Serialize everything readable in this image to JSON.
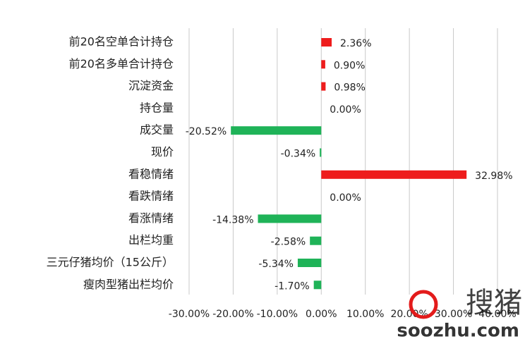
{
  "chart_data": {
    "type": "hbar",
    "categories": [
      "前20名空单合计持仓",
      "前20名多单合计持仓",
      "沉淀资金",
      "持仓量",
      "成交量",
      "现价",
      "看稳情绪",
      "看跌情绪",
      "看涨情绪",
      "出栏均重",
      "三元仔猪均价（15公斤）",
      "瘦肉型猪出栏均价"
    ],
    "values": [
      2.36,
      0.9,
      0.98,
      0.0,
      -20.52,
      -0.34,
      32.98,
      0.0,
      -14.38,
      -2.58,
      -5.34,
      -1.7
    ],
    "value_labels": [
      "2.36%",
      "0.90%",
      "0.98%",
      "0.00%",
      "-20.52%",
      "-0.34%",
      "32.98%",
      "0.00%",
      "-14.38%",
      "-2.58%",
      "-5.34%",
      "-1.70%"
    ],
    "positive_color": "#ee1c1c",
    "negative_color": "#1fb358",
    "xlim": [
      -30,
      40
    ],
    "xticks": [
      {
        "value": -30,
        "label": "-30.00%"
      },
      {
        "value": -20,
        "label": "-20.00%"
      },
      {
        "value": -10,
        "label": "-10.00%"
      },
      {
        "value": 0,
        "label": "0.00%"
      },
      {
        "value": 10,
        "label": "10.00%"
      },
      {
        "value": 20,
        "label": "20.00%"
      },
      {
        "value": 30,
        "label": "30.00%"
      },
      {
        "value": 40,
        "label": "40.00%"
      }
    ],
    "grid": true
  },
  "watermark": {
    "brand": "搜猪",
    "url": "soozhu.com"
  }
}
